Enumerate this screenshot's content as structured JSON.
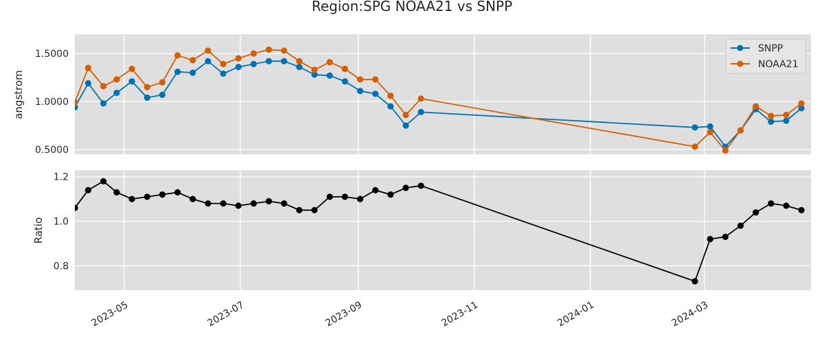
{
  "chart_data": {
    "type": "line",
    "title": "Region:SPG NOAA21 vs SNPP",
    "x_axis": {
      "xlim": [
        "2023-04-05",
        "2024-04-26"
      ],
      "ticks": [
        "2023-05-01",
        "2023-07-01",
        "2023-09-01",
        "2023-11-01",
        "2024-01-01",
        "2024-03-01"
      ],
      "tick_labels": [
        "2023-05",
        "2023-07",
        "2023-09",
        "2023-11",
        "2024-01",
        "2024-03"
      ]
    },
    "grid": true,
    "panels": [
      {
        "ylabel": "angstrom",
        "ylim": [
          0.45,
          1.7
        ],
        "yticks": [
          0.5,
          1.0,
          1.5
        ],
        "ytick_labels": [
          "0.5000",
          "1.0000",
          "1.5000"
        ],
        "legend": "top-right",
        "series": [
          {
            "name": "SNPP",
            "color": "#0072b2",
            "points": [
              {
                "x": "2023-04-05",
                "y": 0.94
              },
              {
                "x": "2023-04-12",
                "y": 1.19
              },
              {
                "x": "2023-04-20",
                "y": 0.98
              },
              {
                "x": "2023-04-27",
                "y": 1.09
              },
              {
                "x": "2023-05-05",
                "y": 1.21
              },
              {
                "x": "2023-05-13",
                "y": 1.04
              },
              {
                "x": "2023-05-21",
                "y": 1.07
              },
              {
                "x": "2023-05-29",
                "y": 1.31
              },
              {
                "x": "2023-06-06",
                "y": 1.3
              },
              {
                "x": "2023-06-14",
                "y": 1.42
              },
              {
                "x": "2023-06-22",
                "y": 1.29
              },
              {
                "x": "2023-06-30",
                "y": 1.36
              },
              {
                "x": "2023-07-08",
                "y": 1.39
              },
              {
                "x": "2023-07-16",
                "y": 1.42
              },
              {
                "x": "2023-07-24",
                "y": 1.42
              },
              {
                "x": "2023-08-01",
                "y": 1.36
              },
              {
                "x": "2023-08-09",
                "y": 1.28
              },
              {
                "x": "2023-08-17",
                "y": 1.27
              },
              {
                "x": "2023-08-25",
                "y": 1.21
              },
              {
                "x": "2023-09-02",
                "y": 1.11
              },
              {
                "x": "2023-09-10",
                "y": 1.08
              },
              {
                "x": "2023-09-18",
                "y": 0.95
              },
              {
                "x": "2023-09-26",
                "y": 0.75
              },
              {
                "x": "2023-10-04",
                "y": 0.89
              },
              {
                "x": "2024-02-25",
                "y": 0.73
              },
              {
                "x": "2024-03-04",
                "y": 0.74
              },
              {
                "x": "2024-03-12",
                "y": 0.53
              },
              {
                "x": "2024-03-20",
                "y": 0.7
              },
              {
                "x": "2024-03-28",
                "y": 0.92
              },
              {
                "x": "2024-04-05",
                "y": 0.79
              },
              {
                "x": "2024-04-13",
                "y": 0.8
              },
              {
                "x": "2024-04-21",
                "y": 0.93
              }
            ]
          },
          {
            "name": "NOAA21",
            "color": "#d55e00",
            "points": [
              {
                "x": "2023-04-05",
                "y": 0.99
              },
              {
                "x": "2023-04-12",
                "y": 1.35
              },
              {
                "x": "2023-04-20",
                "y": 1.16
              },
              {
                "x": "2023-04-27",
                "y": 1.23
              },
              {
                "x": "2023-05-05",
                "y": 1.34
              },
              {
                "x": "2023-05-13",
                "y": 1.15
              },
              {
                "x": "2023-05-21",
                "y": 1.2
              },
              {
                "x": "2023-05-29",
                "y": 1.48
              },
              {
                "x": "2023-06-06",
                "y": 1.43
              },
              {
                "x": "2023-06-14",
                "y": 1.53
              },
              {
                "x": "2023-06-22",
                "y": 1.39
              },
              {
                "x": "2023-06-30",
                "y": 1.45
              },
              {
                "x": "2023-07-08",
                "y": 1.5
              },
              {
                "x": "2023-07-16",
                "y": 1.54
              },
              {
                "x": "2023-07-24",
                "y": 1.53
              },
              {
                "x": "2023-08-01",
                "y": 1.42
              },
              {
                "x": "2023-08-09",
                "y": 1.33
              },
              {
                "x": "2023-08-17",
                "y": 1.41
              },
              {
                "x": "2023-08-25",
                "y": 1.34
              },
              {
                "x": "2023-09-02",
                "y": 1.23
              },
              {
                "x": "2023-09-10",
                "y": 1.23
              },
              {
                "x": "2023-09-18",
                "y": 1.06
              },
              {
                "x": "2023-09-26",
                "y": 0.86
              },
              {
                "x": "2023-10-04",
                "y": 1.03
              },
              {
                "x": "2024-02-25",
                "y": 0.53
              },
              {
                "x": "2024-03-04",
                "y": 0.68
              },
              {
                "x": "2024-03-12",
                "y": 0.49
              },
              {
                "x": "2024-03-20",
                "y": 0.7
              },
              {
                "x": "2024-03-28",
                "y": 0.95
              },
              {
                "x": "2024-04-05",
                "y": 0.85
              },
              {
                "x": "2024-04-13",
                "y": 0.86
              },
              {
                "x": "2024-04-21",
                "y": 0.98
              }
            ]
          }
        ]
      },
      {
        "ylabel": "Ratio",
        "ylim": [
          0.69,
          1.23
        ],
        "yticks": [
          0.8,
          1.0,
          1.2
        ],
        "ytick_labels": [
          "0.8",
          "1.0",
          "1.2"
        ],
        "series": [
          {
            "name": "",
            "color": "#000000",
            "points": [
              {
                "x": "2023-04-05",
                "y": 1.06
              },
              {
                "x": "2023-04-12",
                "y": 1.14
              },
              {
                "x": "2023-04-20",
                "y": 1.18
              },
              {
                "x": "2023-04-27",
                "y": 1.13
              },
              {
                "x": "2023-05-05",
                "y": 1.1
              },
              {
                "x": "2023-05-13",
                "y": 1.11
              },
              {
                "x": "2023-05-21",
                "y": 1.12
              },
              {
                "x": "2023-05-29",
                "y": 1.13
              },
              {
                "x": "2023-06-06",
                "y": 1.1
              },
              {
                "x": "2023-06-14",
                "y": 1.08
              },
              {
                "x": "2023-06-22",
                "y": 1.08
              },
              {
                "x": "2023-06-30",
                "y": 1.07
              },
              {
                "x": "2023-07-08",
                "y": 1.08
              },
              {
                "x": "2023-07-16",
                "y": 1.09
              },
              {
                "x": "2023-07-24",
                "y": 1.08
              },
              {
                "x": "2023-08-01",
                "y": 1.05
              },
              {
                "x": "2023-08-09",
                "y": 1.05
              },
              {
                "x": "2023-08-17",
                "y": 1.11
              },
              {
                "x": "2023-08-25",
                "y": 1.11
              },
              {
                "x": "2023-09-02",
                "y": 1.1
              },
              {
                "x": "2023-09-10",
                "y": 1.14
              },
              {
                "x": "2023-09-18",
                "y": 1.12
              },
              {
                "x": "2023-09-26",
                "y": 1.15
              },
              {
                "x": "2023-10-04",
                "y": 1.16
              },
              {
                "x": "2024-02-25",
                "y": 0.73
              },
              {
                "x": "2024-03-04",
                "y": 0.92
              },
              {
                "x": "2024-03-12",
                "y": 0.93
              },
              {
                "x": "2024-03-20",
                "y": 0.98
              },
              {
                "x": "2024-03-28",
                "y": 1.04
              },
              {
                "x": "2024-04-05",
                "y": 1.08
              },
              {
                "x": "2024-04-13",
                "y": 1.07
              },
              {
                "x": "2024-04-21",
                "y": 1.05
              }
            ]
          }
        ]
      }
    ]
  }
}
